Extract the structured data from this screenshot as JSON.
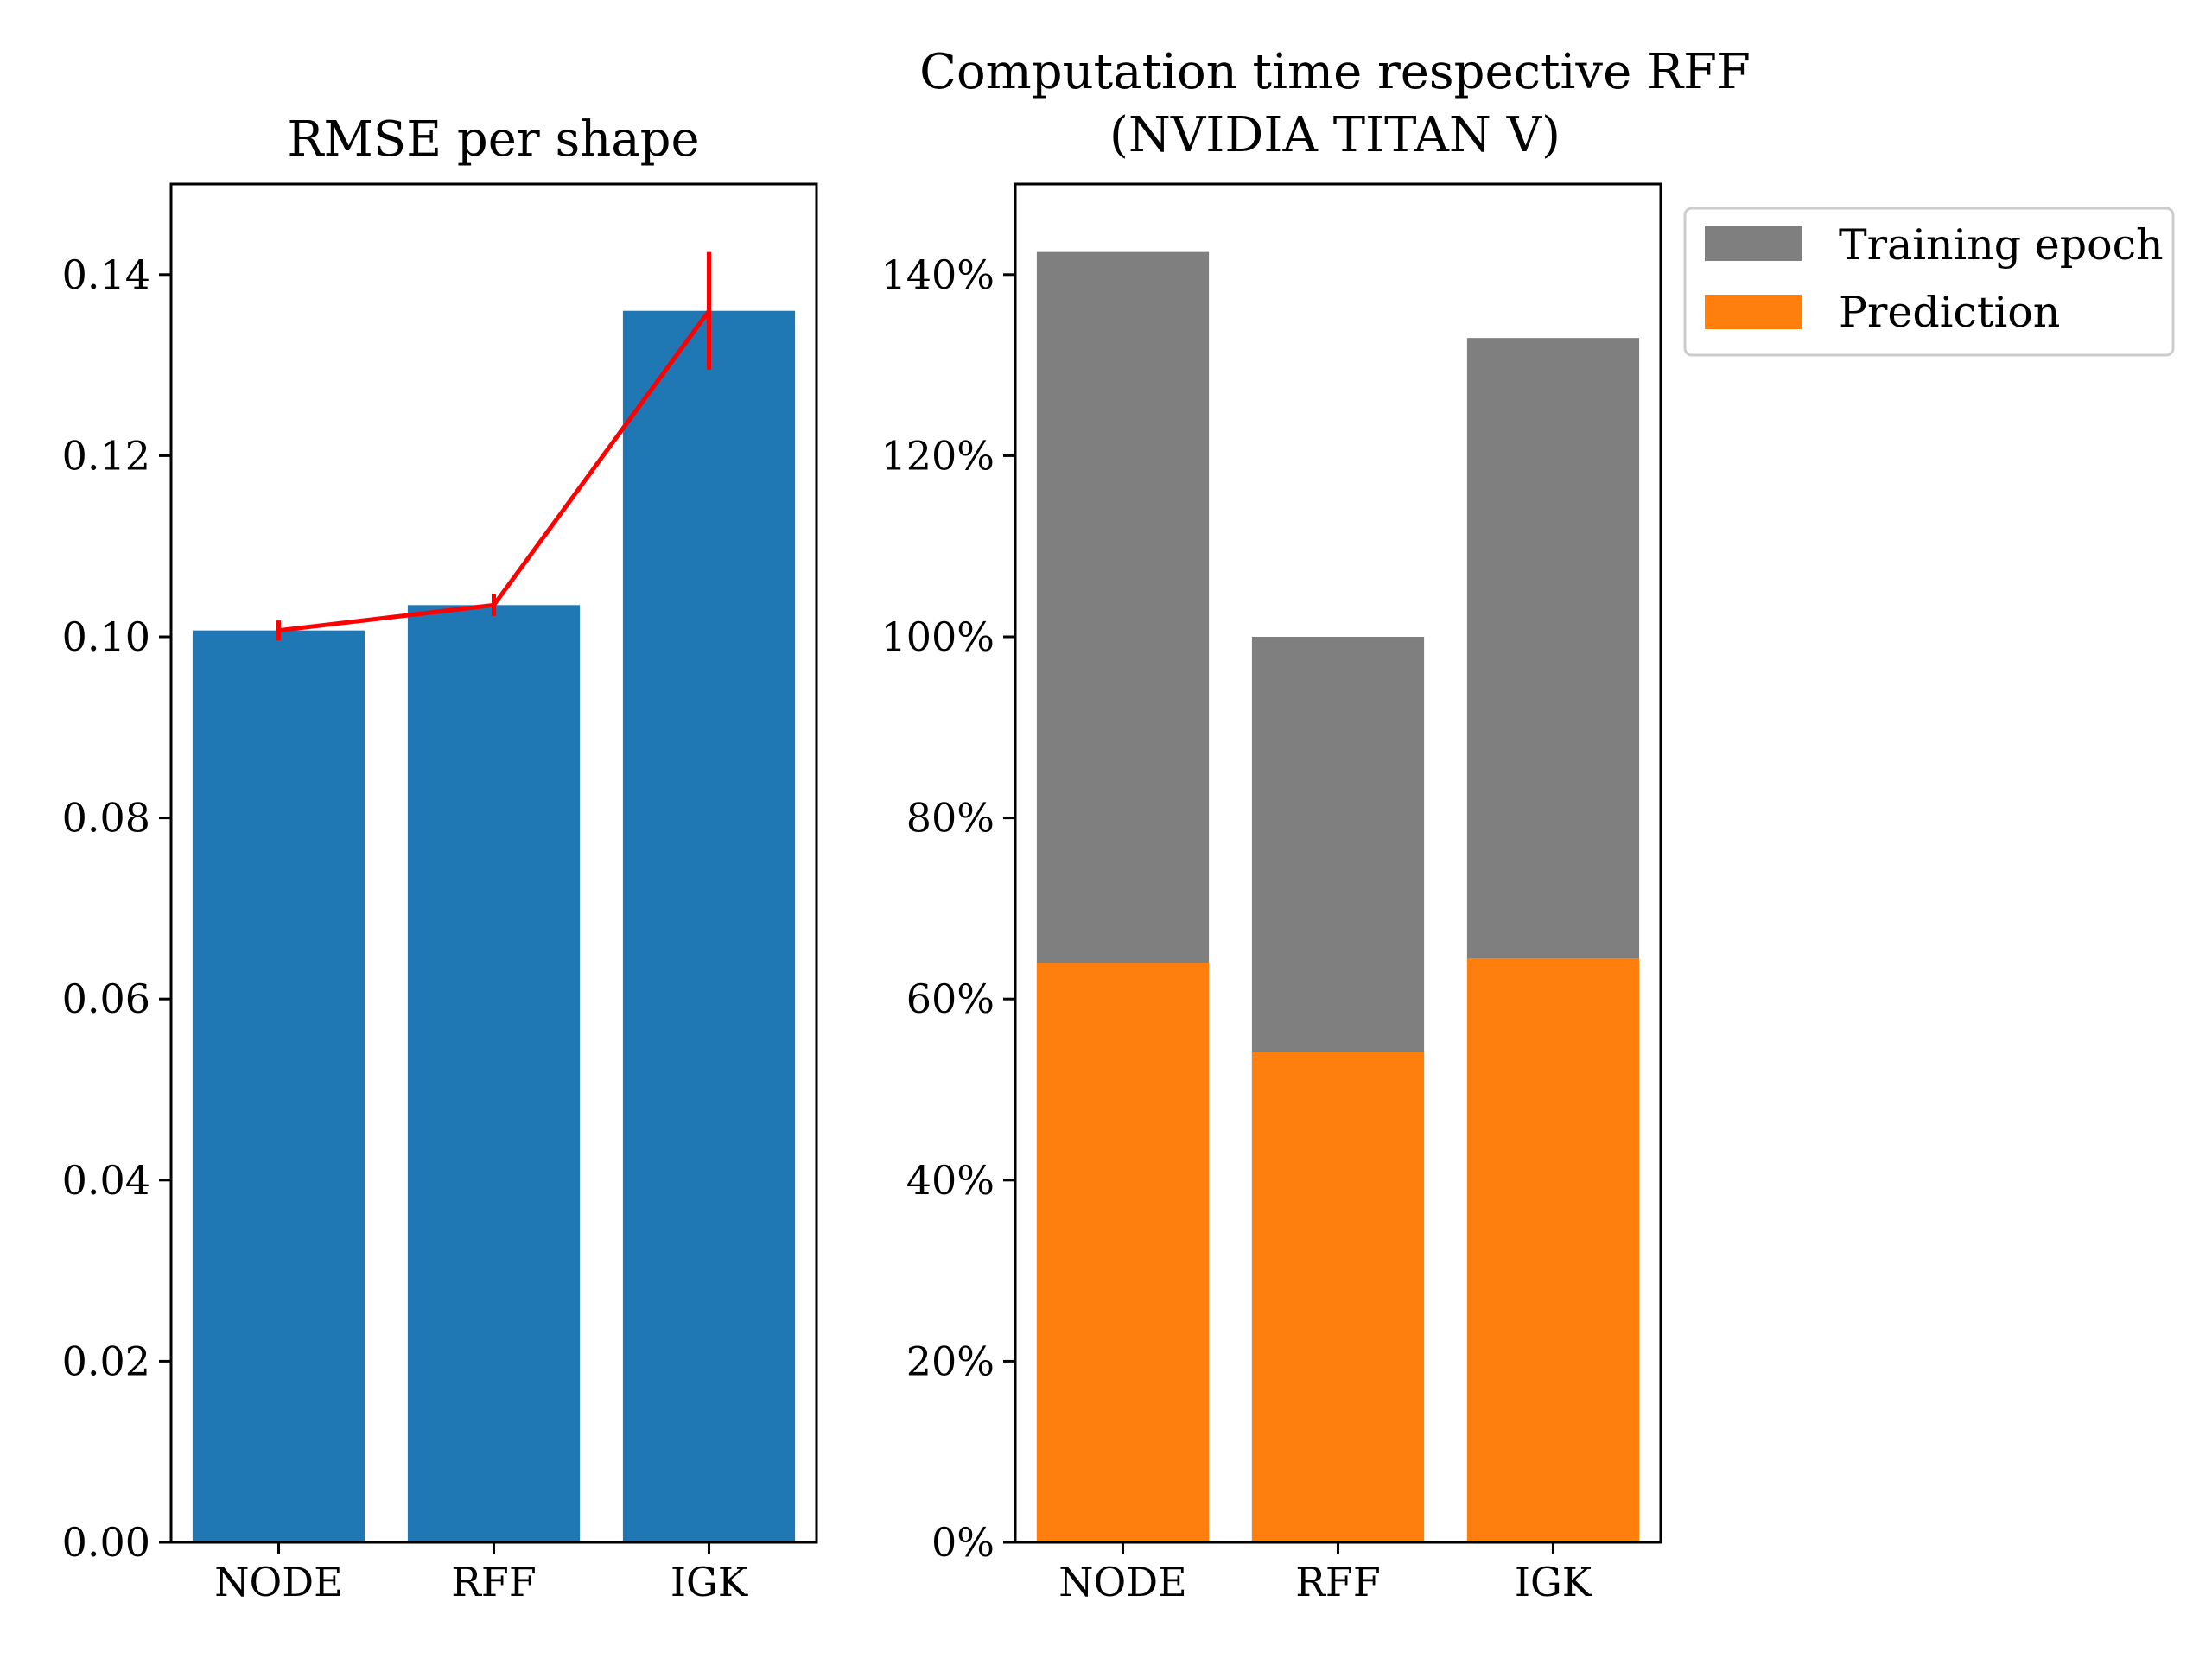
{
  "chart_data": [
    {
      "type": "bar",
      "title": "RMSE per shape",
      "xlabel": "",
      "ylabel": "",
      "categories": [
        "NODE",
        "RFF",
        "IGK"
      ],
      "values": [
        0.1007,
        0.1035,
        0.136
      ],
      "error_line": {
        "values": [
          0.1007,
          0.1035,
          0.136
        ],
        "errors": [
          0.0011,
          0.0012,
          0.0065
        ],
        "color": "#ff0000"
      },
      "ylim": [
        0,
        0.15
      ],
      "yticks": [
        0.0,
        0.02,
        0.04,
        0.06,
        0.08,
        0.1,
        0.12,
        0.14
      ],
      "ytick_labels": [
        "0.00",
        "0.02",
        "0.04",
        "0.06",
        "0.08",
        "0.10",
        "0.12",
        "0.14"
      ],
      "bar_color": "#1f77b4",
      "grid": false
    },
    {
      "type": "bar",
      "stacked": false,
      "title_lines": [
        "Computation time respective RFF",
        "(NVIDIA TITAN V)"
      ],
      "xlabel": "",
      "ylabel": "",
      "categories": [
        "NODE",
        "RFF",
        "IGK"
      ],
      "series": [
        {
          "name": "Training epoch",
          "values": [
            142.5,
            100.0,
            133.0
          ],
          "color": "#7f7f7f"
        },
        {
          "name": "Prediction",
          "values": [
            64.0,
            54.2,
            64.5
          ],
          "color": "#ff7f0e"
        }
      ],
      "ylim": [
        0,
        150
      ],
      "yticks": [
        0,
        20,
        40,
        60,
        80,
        100,
        120,
        140
      ],
      "ytick_labels": [
        "0%",
        "20%",
        "40%",
        "60%",
        "80%",
        "100%",
        "120%",
        "140%"
      ],
      "legend_position": "outside-upper-right",
      "grid": false
    }
  ]
}
